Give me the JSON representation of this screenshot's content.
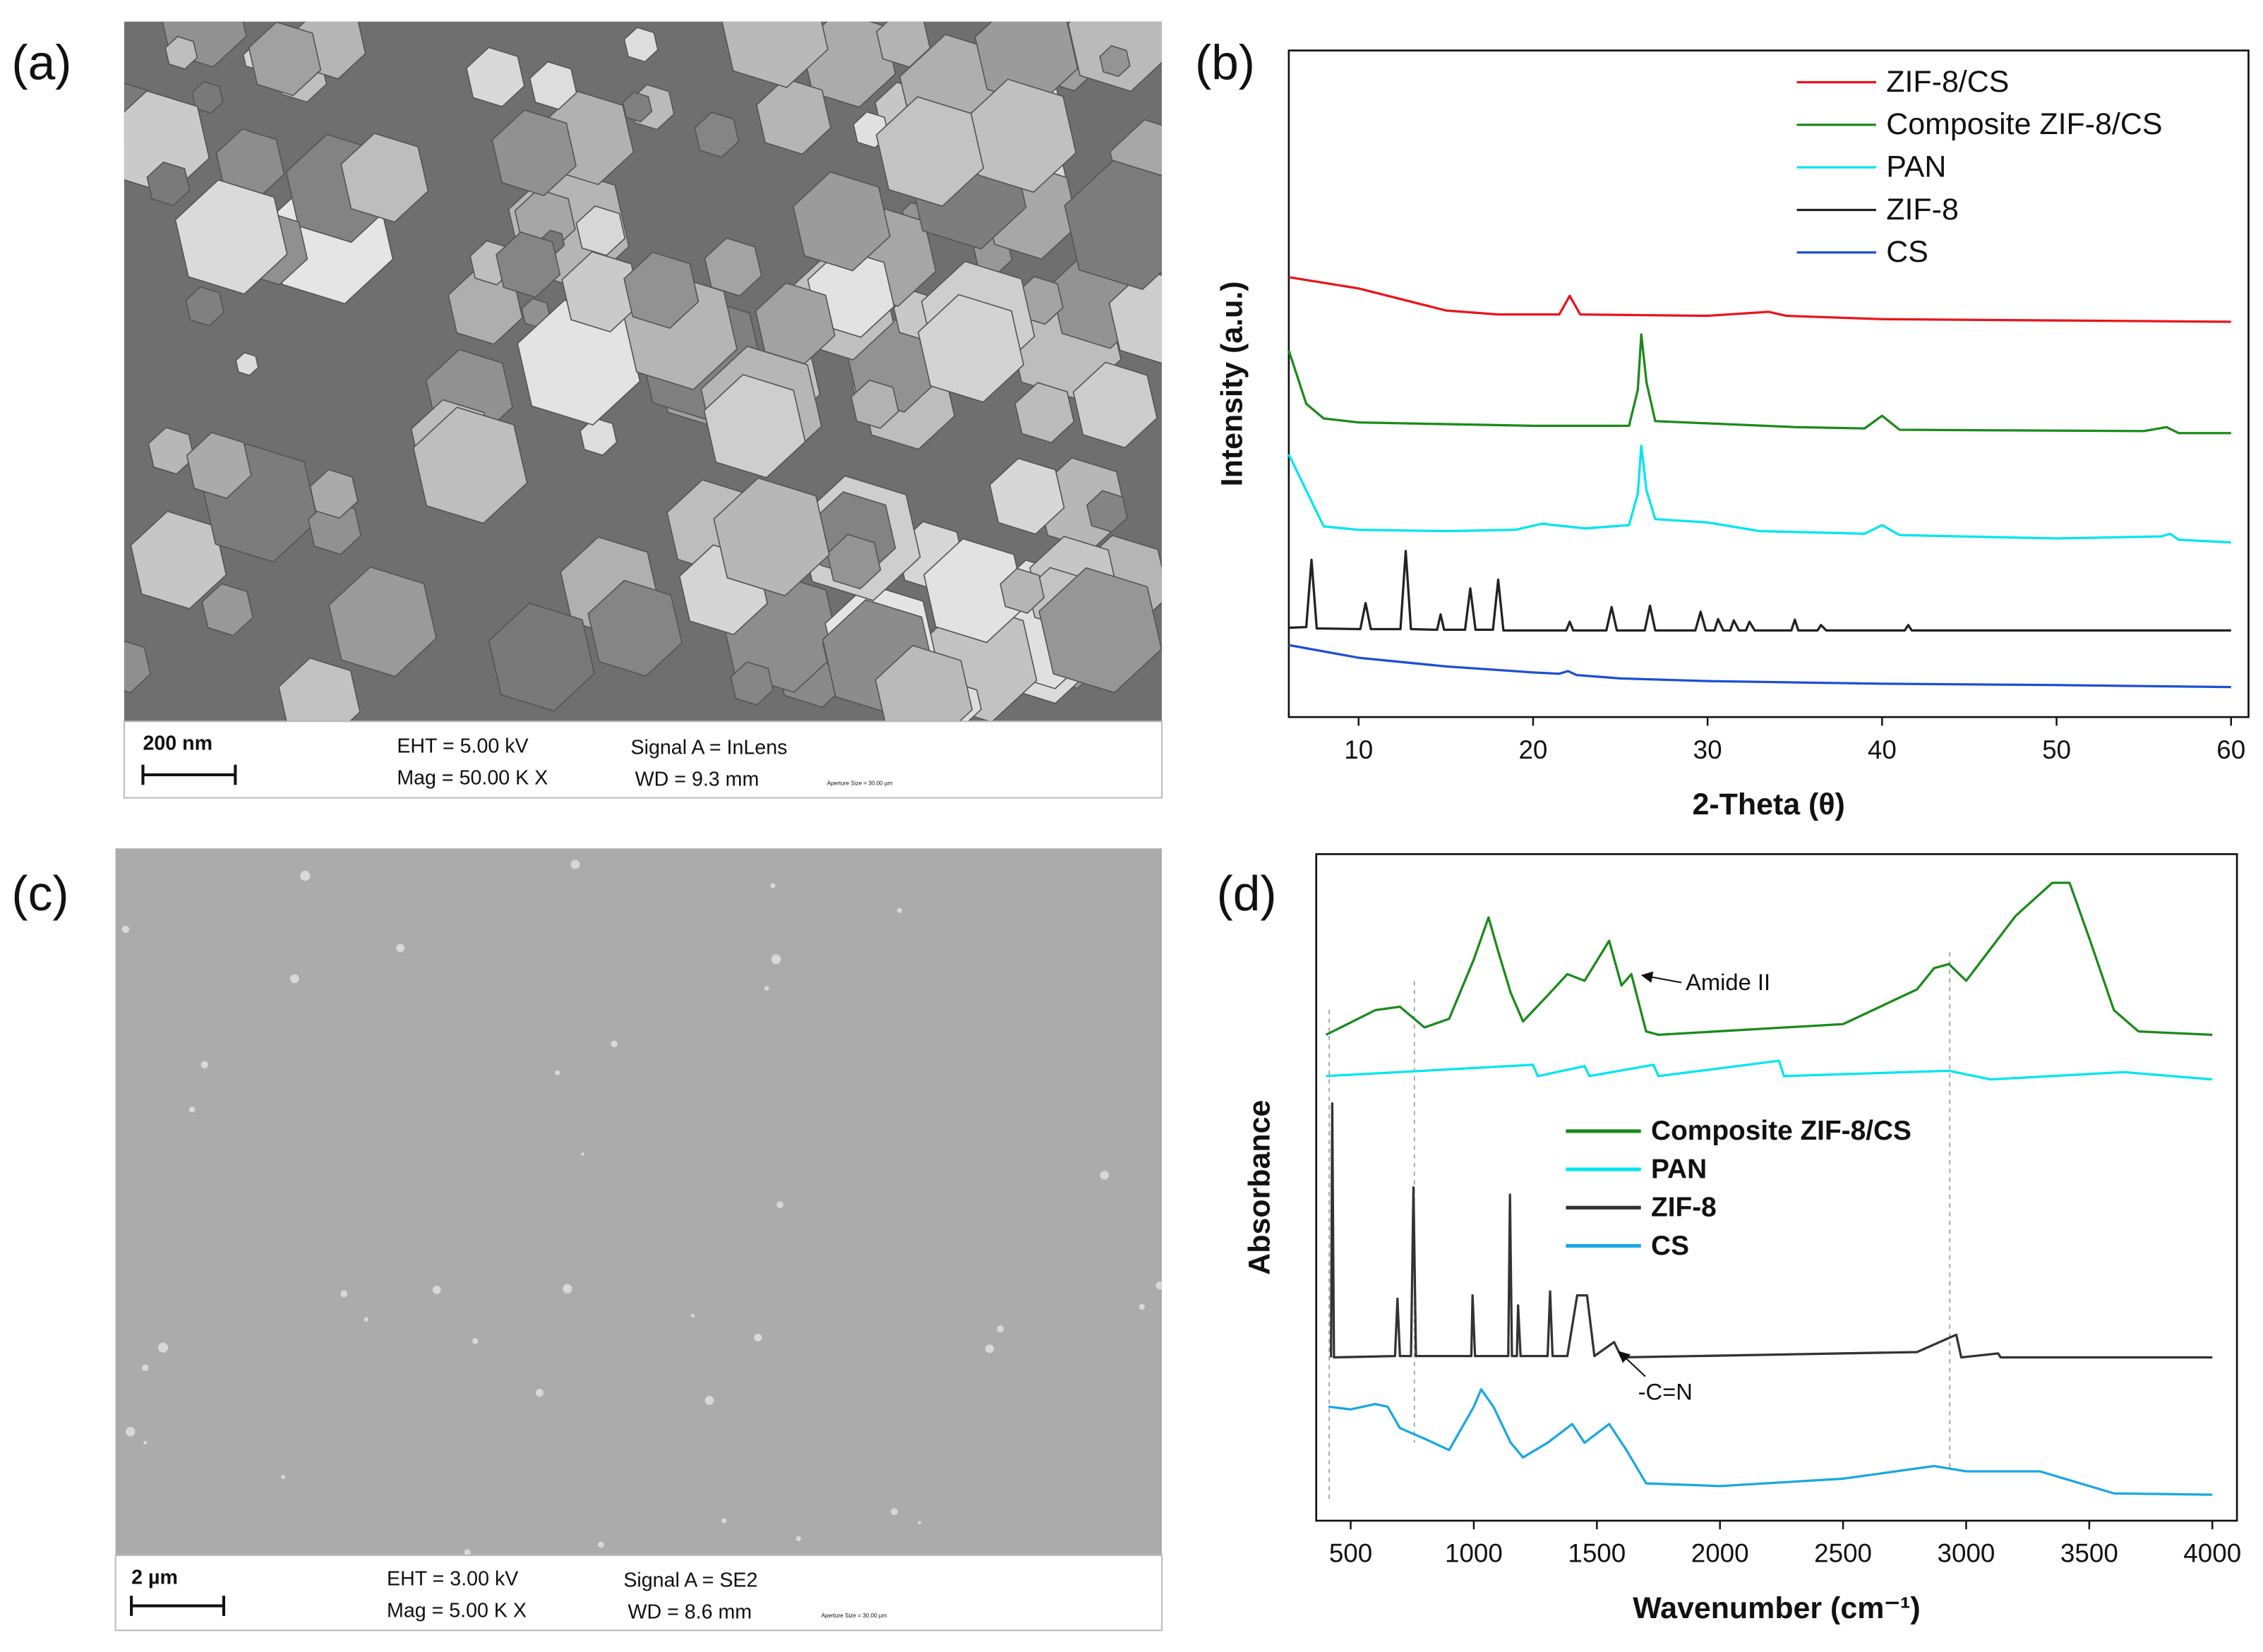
{
  "panel_labels": [
    "(a)",
    "(b)",
    "(c)",
    "(d)"
  ],
  "sem_images": [
    {
      "scale_bar": "200 nm",
      "eht": "EHT =  5.00 kV",
      "mag": "Mag =   50.00 K X",
      "signal": "Signal A = InLens",
      "wd": "WD =  9.3 mm",
      "aperture": "Aperture Size = 30.00 µm"
    },
    {
      "scale_bar": "2 µm",
      "eht": "EHT =  3.00 kV",
      "mag": "Mag =    5.00 K X",
      "signal": "Signal A = SE2",
      "wd": "WD =  8.6 mm",
      "aperture": "Aperture Size = 30.00 µm"
    }
  ],
  "chart_data": [
    {
      "type": "line",
      "x_label": "2-Theta (θ)",
      "y_label": "Intensity (a.u.)",
      "xlim": [
        6,
        61
      ],
      "xticks": [
        10,
        20,
        30,
        40,
        50,
        60
      ],
      "ylim": [
        0,
        100
      ],
      "legend": "upper right",
      "series": [
        {
          "name": "ZIF-8/CS",
          "color": "#e8151b",
          "x": [
            6,
            10,
            15,
            18,
            21.5,
            22.1,
            22.7,
            30,
            33.5,
            34.5,
            40,
            60
          ],
          "values": [
            66.0,
            64.3,
            61.0,
            60.4,
            60.4,
            63.2,
            60.4,
            60.2,
            60.8,
            60.2,
            59.7,
            59.3
          ]
        },
        {
          "name": "Composite ZIF-8/CS",
          "color": "#1b8a1b",
          "x": [
            6,
            7,
            8,
            10,
            20,
            25.5,
            26.0,
            26.2,
            26.5,
            27,
            35,
            39,
            40,
            41,
            55,
            56.3,
            57,
            60
          ],
          "values": [
            55.0,
            47.0,
            44.8,
            44.2,
            43.7,
            43.7,
            49.1,
            57.4,
            50.2,
            44.4,
            43.5,
            43.3,
            45.2,
            43.1,
            42.9,
            43.5,
            42.6,
            42.6
          ]
        },
        {
          "name": "PAN",
          "color": "#00e5f0",
          "x": [
            6,
            8,
            10,
            15,
            19,
            20.5,
            23,
            25.5,
            26.0,
            26.2,
            26.5,
            27,
            30,
            33,
            39,
            40,
            41,
            50,
            56,
            56.5,
            57,
            60
          ],
          "values": [
            39.4,
            28.6,
            28.1,
            27.9,
            28.1,
            29.0,
            28.3,
            28.8,
            33.5,
            40.7,
            34.0,
            29.7,
            29.2,
            27.9,
            27.5,
            28.8,
            27.3,
            26.8,
            27.1,
            27.5,
            26.6,
            26.2
          ]
        },
        {
          "name": "ZIF-8",
          "color": "#222222",
          "x": [
            6,
            7.0,
            7.3,
            7.6,
            10.1,
            10.4,
            10.7,
            12.4,
            12.7,
            13.0,
            14.5,
            14.7,
            14.9,
            16.1,
            16.4,
            16.7,
            17.7,
            18.0,
            18.3,
            21.9,
            22.1,
            22.3,
            24.2,
            24.5,
            24.8,
            26.4,
            26.7,
            27.0,
            29.3,
            29.6,
            29.9,
            30.4,
            30.6,
            30.9,
            31.3,
            31.5,
            31.8,
            32.2,
            32.4,
            32.7,
            34.8,
            35.0,
            35.2,
            36.3,
            36.5,
            36.8,
            41.3,
            41.5,
            41.7,
            60
          ],
          "values": [
            13.4,
            13.5,
            23.6,
            13.3,
            13.2,
            17.1,
            13.2,
            13.2,
            24.9,
            13.2,
            13.1,
            15.4,
            13.1,
            13.1,
            19.3,
            13.1,
            13.1,
            20.6,
            13.0,
            13.0,
            14.3,
            13.0,
            13.0,
            16.5,
            13.0,
            13.0,
            16.7,
            13.0,
            13.0,
            15.8,
            13.0,
            13.0,
            14.7,
            13.0,
            13.0,
            14.5,
            13.0,
            13.0,
            14.3,
            13.0,
            13.0,
            14.6,
            13.0,
            13.0,
            13.8,
            13.0,
            13.0,
            13.8,
            13.0,
            13.0
          ]
        },
        {
          "name": "CS",
          "color": "#1f4fd1",
          "x": [
            6,
            10,
            15,
            20,
            21.5,
            22,
            22.5,
            25,
            30,
            40,
            50,
            60
          ],
          "values": [
            10.8,
            8.9,
            7.6,
            6.7,
            6.5,
            6.9,
            6.3,
            5.8,
            5.4,
            5.0,
            4.8,
            4.5
          ]
        }
      ]
    },
    {
      "type": "line",
      "x_label": "Wavenumber (cm⁻¹)",
      "y_label": "Absorbance",
      "xlim": [
        360,
        4100
      ],
      "xticks": [
        500,
        1000,
        1500,
        2000,
        2500,
        3000,
        3500,
        4000
      ],
      "ylim": [
        0,
        100
      ],
      "legend": "center",
      "annotations": [
        "Amide II",
        "-C=N"
      ],
      "series": [
        {
          "name": "Composite ZIF-8/CS",
          "color": "#1a8a1a",
          "x": [
            400,
            600,
            700,
            800,
            900,
            1000,
            1060,
            1100,
            1150,
            1200,
            1300,
            1380,
            1450,
            1550,
            1600,
            1640,
            1700,
            1750,
            2500,
            2800,
            2870,
            2930,
            3000,
            3200,
            3350,
            3420,
            3500,
            3600,
            3700,
            4000
          ],
          "values": [
            72.9,
            76.6,
            77.1,
            74.0,
            75.3,
            84.2,
            90.5,
            85.3,
            79.2,
            74.9,
            78.8,
            82.0,
            81.0,
            87.0,
            80.3,
            82.0,
            73.4,
            72.9,
            74.5,
            79.7,
            82.9,
            83.5,
            81.0,
            90.7,
            95.7,
            95.7,
            87.4,
            76.6,
            73.4,
            72.9
          ]
        },
        {
          "name": "PAN",
          "color": "#00e5f0",
          "x": [
            400,
            1240,
            1260,
            1450,
            1470,
            1730,
            1750,
            2240,
            2260,
            2930,
            3100,
            3640,
            4000
          ],
          "values": [
            66.7,
            68.4,
            66.7,
            68.2,
            66.7,
            68.4,
            66.7,
            69.0,
            66.7,
            67.5,
            66.2,
            67.3,
            66.2
          ]
        },
        {
          "name": "ZIF-8",
          "color": "#333333",
          "x": [
            420,
            425,
            432,
            680,
            690,
            700,
            745,
            755,
            765,
            990,
            995,
            1005,
            1140,
            1147,
            1155,
            1175,
            1180,
            1190,
            1300,
            1310,
            1320,
            1380,
            1420,
            1460,
            1490,
            1570,
            1600,
            2800,
            2960,
            2980,
            3130,
            3140,
            4000
          ],
          "values": [
            24.5,
            62.6,
            24.5,
            24.7,
            33.3,
            24.7,
            24.7,
            50.0,
            24.7,
            24.7,
            33.8,
            24.7,
            24.7,
            48.9,
            24.7,
            24.7,
            32.3,
            24.7,
            24.7,
            34.4,
            24.7,
            24.7,
            33.8,
            33.8,
            24.7,
            26.8,
            24.5,
            25.3,
            27.9,
            24.5,
            25.1,
            24.5,
            24.5
          ]
        },
        {
          "name": "CS",
          "color": "#1aa7e0",
          "x": [
            410,
            500,
            600,
            650,
            700,
            800,
            900,
            1000,
            1030,
            1080,
            1150,
            1200,
            1300,
            1400,
            1450,
            1550,
            1620,
            1700,
            2000,
            2500,
            2870,
            3000,
            3300,
            3500,
            3600,
            4000
          ],
          "values": [
            17.1,
            16.7,
            17.5,
            17.1,
            13.9,
            12.3,
            10.6,
            17.1,
            19.7,
            17.1,
            11.7,
            9.5,
            11.7,
            14.5,
            11.7,
            14.5,
            10.6,
            5.6,
            5.2,
            6.3,
            8.2,
            7.4,
            7.4,
            5.2,
            4.1,
            3.9
          ]
        }
      ]
    }
  ]
}
